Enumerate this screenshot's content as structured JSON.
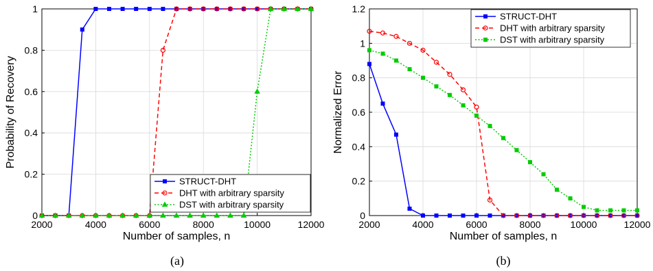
{
  "chart_data": [
    {
      "type": "line",
      "caption": "(a)",
      "xlabel": "Number of samples, n",
      "ylabel": "Probability of Recovery",
      "xlim": [
        2000,
        12000
      ],
      "ylim": [
        0,
        1
      ],
      "xticks": [
        2000,
        4000,
        6000,
        8000,
        10000,
        12000
      ],
      "yticks": [
        0,
        0.2,
        0.4,
        0.6,
        0.8,
        1
      ],
      "grid": true,
      "legend_position": "bottom-right",
      "x": [
        2000,
        2500,
        3000,
        3500,
        4000,
        4500,
        5000,
        5500,
        6000,
        6500,
        7000,
        7500,
        8000,
        8500,
        9000,
        9500,
        10000,
        10500,
        11000,
        11500,
        12000
      ],
      "series": [
        {
          "name": "STRUCT-DHT",
          "color": "#0000ff",
          "dash": "solid",
          "marker": "square",
          "values": [
            0,
            0,
            0,
            0.9,
            1,
            1,
            1,
            1,
            1,
            1,
            1,
            1,
            1,
            1,
            1,
            1,
            1,
            1,
            1,
            1,
            1
          ]
        },
        {
          "name": "DHT with arbitrary sparsity",
          "color": "#ff0000",
          "dash": "dashed",
          "marker": "circle",
          "values": [
            0,
            0,
            0,
            0,
            0,
            0,
            0,
            0,
            0,
            0.8,
            1,
            1,
            1,
            1,
            1,
            1,
            1,
            1,
            1,
            1,
            1
          ]
        },
        {
          "name": "DST with arbitrary sparsity",
          "color": "#00cc00",
          "dash": "dotted",
          "marker": "triangle",
          "values": [
            0,
            0,
            0,
            0,
            0,
            0,
            0,
            0,
            0,
            0,
            0,
            0,
            0,
            0,
            0,
            0,
            0.6,
            1,
            1,
            1,
            1
          ]
        }
      ]
    },
    {
      "type": "line",
      "caption": "(b)",
      "xlabel": "Number of samples, n",
      "ylabel": "Normalized Error",
      "xlim": [
        2000,
        12000
      ],
      "ylim": [
        0,
        1.2
      ],
      "xticks": [
        2000,
        4000,
        6000,
        8000,
        10000,
        12000
      ],
      "yticks": [
        0,
        0.2,
        0.4,
        0.6,
        0.8,
        1,
        1.2
      ],
      "grid": true,
      "legend_position": "top-right",
      "x": [
        2000,
        2500,
        3000,
        3500,
        4000,
        4500,
        5000,
        5500,
        6000,
        6500,
        7000,
        7500,
        8000,
        8500,
        9000,
        9500,
        10000,
        10500,
        11000,
        11500,
        12000
      ],
      "series": [
        {
          "name": "STRUCT-DHT",
          "color": "#0000ff",
          "dash": "solid",
          "marker": "square",
          "values": [
            0.88,
            0.65,
            0.47,
            0.04,
            0,
            0,
            0,
            0,
            0,
            0,
            0,
            0,
            0,
            0,
            0,
            0,
            0,
            0,
            0,
            0,
            0
          ]
        },
        {
          "name": "DHT with arbitrary sparsity",
          "color": "#ff0000",
          "dash": "dashed",
          "marker": "circle",
          "values": [
            1.07,
            1.06,
            1.04,
            1.0,
            0.96,
            0.89,
            0.82,
            0.73,
            0.63,
            0.09,
            0,
            0,
            0,
            0,
            0,
            0,
            0,
            0,
            0,
            0,
            0
          ]
        },
        {
          "name": "DST with arbitrary sparsity",
          "color": "#00cc00",
          "dash": "dotted",
          "marker": "square",
          "values": [
            0.96,
            0.94,
            0.9,
            0.85,
            0.8,
            0.75,
            0.7,
            0.64,
            0.58,
            0.52,
            0.45,
            0.38,
            0.31,
            0.24,
            0.15,
            0.1,
            0.05,
            0.03,
            0.03,
            0.03,
            0.03
          ]
        }
      ]
    }
  ]
}
